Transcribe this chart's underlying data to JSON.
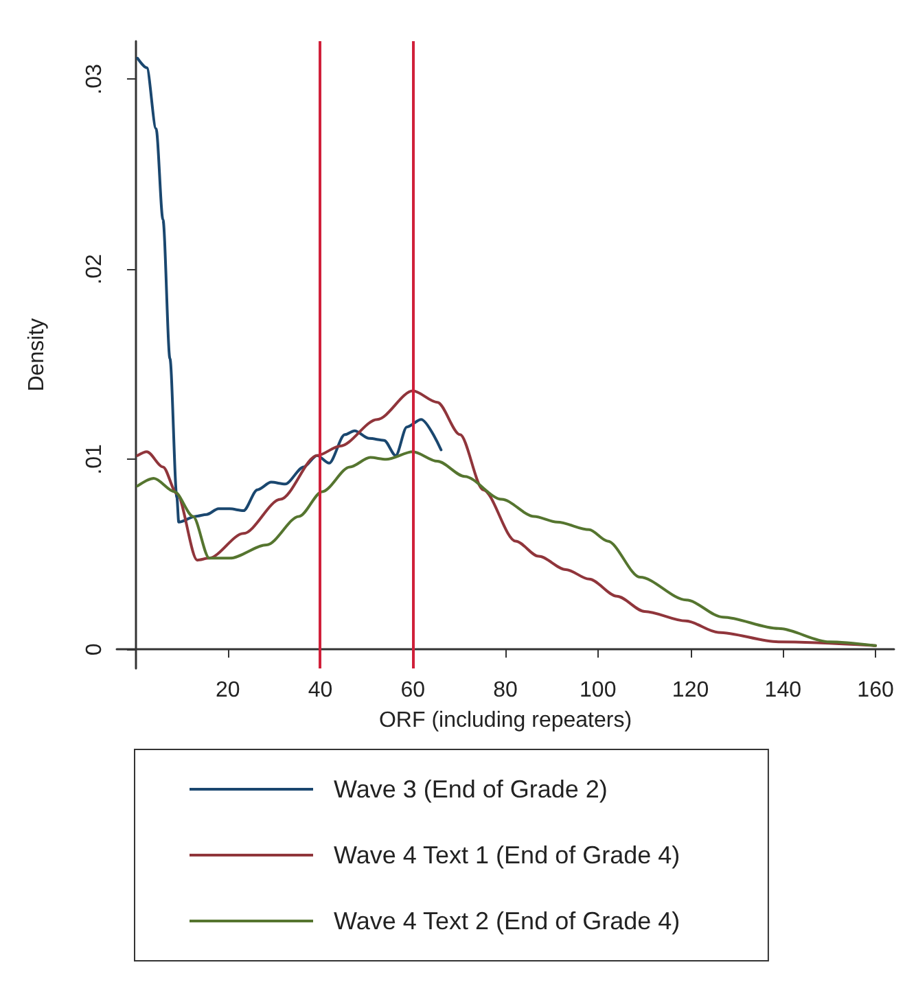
{
  "chart_data": {
    "type": "line",
    "xlabel": "ORF (including repeaters)",
    "ylabel": "Density",
    "xlim": [
      -4,
      164
    ],
    "xticks": [
      20,
      40,
      60,
      80,
      100,
      120,
      140,
      160
    ],
    "ylim": [
      -0.001,
      0.032
    ],
    "yticks": [
      {
        "value": 0,
        "label": "0"
      },
      {
        "value": 0.01,
        "label": ".01"
      },
      {
        "value": 0.02,
        "label": ".02"
      },
      {
        "value": 0.03,
        "label": ".03"
      }
    ],
    "grid": false,
    "legend": "bottom",
    "marker": "none",
    "line_style": "solid",
    "ref_lines": [
      {
        "axis": "x",
        "value": 40,
        "color": "#d0203a"
      },
      {
        "axis": "x",
        "value": 60,
        "color": "#d0203a"
      }
    ],
    "series": [
      {
        "name": "Wave 3 (End of Grade 2)",
        "color": "#1a476f",
        "x": [
          0.5,
          2.5,
          4.5,
          6,
          7.5,
          9,
          9.4,
          13,
          15.4,
          18,
          20.4,
          23.4,
          26.4,
          29.4,
          32.4,
          36.4,
          39.3,
          41.9,
          45.3,
          47.4,
          50.6,
          53.8,
          56.3,
          58.7,
          61.8,
          66.1
        ],
        "values": [
          0.0311,
          0.0306,
          0.0274,
          0.0226,
          0.0153,
          0.008,
          0.0067,
          0.007,
          0.0071,
          0.0074,
          0.0074,
          0.0073,
          0.0084,
          0.0088,
          0.0087,
          0.0096,
          0.0102,
          0.0098,
          0.0113,
          0.0115,
          0.0111,
          0.011,
          0.0102,
          0.0117,
          0.0121,
          0.0105
        ]
      },
      {
        "name": "Wave 4 Text 1 (End of Grade 4)",
        "color": "#90353b",
        "x": [
          0.5,
          2.5,
          6,
          9,
          13.4,
          15.9,
          23.4,
          31.4,
          39.3,
          44.3,
          52.3,
          60,
          65.3,
          70.2,
          75.2,
          82.2,
          87.2,
          93.1,
          98.1,
          104.1,
          110.1,
          119,
          126,
          139,
          160
        ],
        "values": [
          0.0102,
          0.0104,
          0.0096,
          0.0082,
          0.0047,
          0.0048,
          0.0061,
          0.0079,
          0.0102,
          0.0107,
          0.0121,
          0.0136,
          0.013,
          0.0113,
          0.0084,
          0.0057,
          0.0049,
          0.0042,
          0.0037,
          0.0028,
          0.002,
          0.0015,
          0.0009,
          0.0004,
          0.0002
        ]
      },
      {
        "name": "Wave 4 Text 2 (End of Grade 4)",
        "color": "#55752f",
        "x": [
          0.5,
          4,
          8.5,
          12.5,
          16,
          20.4,
          28.4,
          35.4,
          40.4,
          46.4,
          50.8,
          54.2,
          60,
          65.3,
          71.2,
          79.2,
          86.2,
          91.2,
          98.1,
          102.1,
          109.1,
          119.1,
          127,
          139,
          150,
          160
        ],
        "values": [
          0.0086,
          0.009,
          0.0083,
          0.007,
          0.0048,
          0.0048,
          0.0055,
          0.007,
          0.0083,
          0.0096,
          0.0101,
          0.01,
          0.0104,
          0.0099,
          0.0091,
          0.0079,
          0.007,
          0.0067,
          0.0063,
          0.0057,
          0.0038,
          0.0026,
          0.0017,
          0.0011,
          0.0004,
          0.0002
        ]
      }
    ]
  }
}
